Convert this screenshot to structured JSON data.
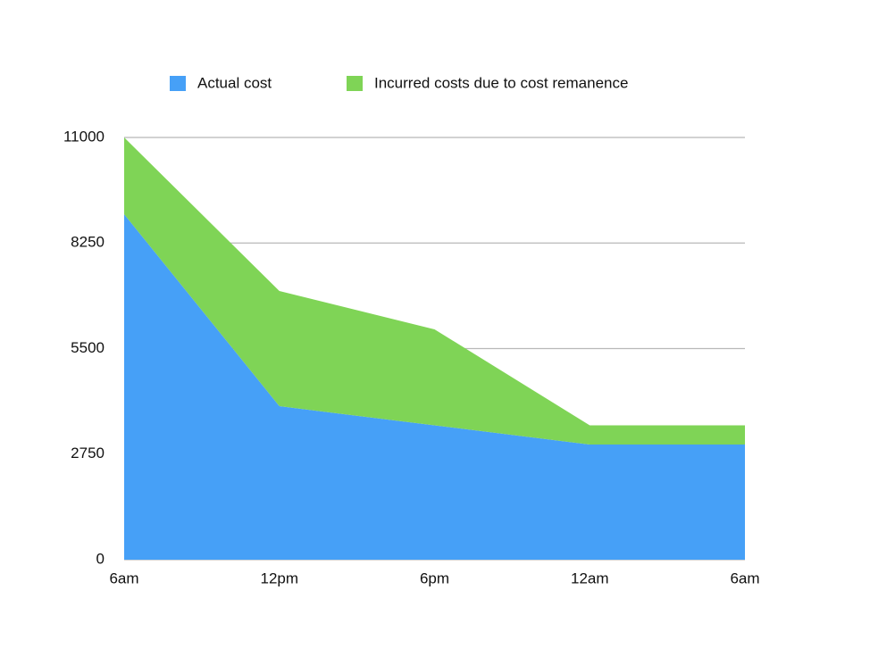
{
  "chart_data": {
    "type": "stacked_area",
    "categories": [
      "6am",
      "12pm",
      "6pm",
      "12am",
      "6am"
    ],
    "series": [
      {
        "name": "Actual cost",
        "color": "#46a0f7",
        "values": [
          9000,
          4000,
          3500,
          3000,
          3000
        ]
      },
      {
        "name": "Incurred costs due to cost remanence",
        "color": "#7fd456",
        "values": [
          2000,
          3000,
          2500,
          500,
          500
        ]
      }
    ],
    "ylim": [
      0,
      11000
    ],
    "yticks": [
      0,
      2750,
      5500,
      8250,
      11000
    ],
    "grid": true
  }
}
